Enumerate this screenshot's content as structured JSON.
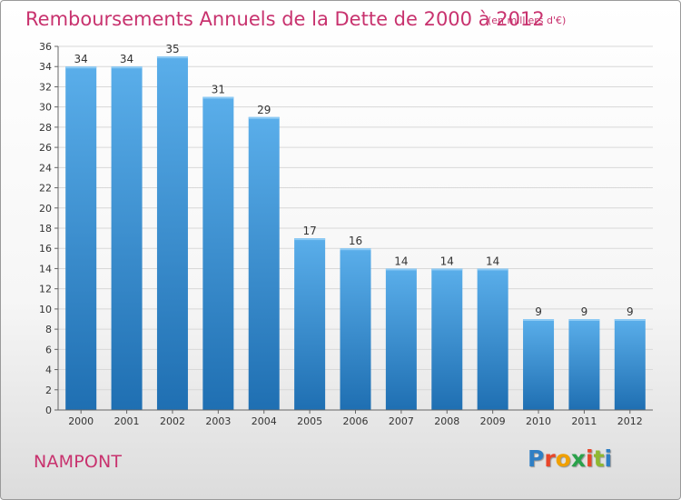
{
  "header": {
    "title": "Remboursements Annuels de la Dette de 2000 à 2012",
    "subtitle": "(en milliers d'€)"
  },
  "footer": {
    "commune": "NAMPONT",
    "logo_text": "Proxiti",
    "logo_colors": [
      "#2f7fc4",
      "#e8462a",
      "#f0a000",
      "#2aa14a",
      "#e8462a",
      "#8fb830",
      "#2f7fc4"
    ]
  },
  "colors": {
    "accent": "#c8326e",
    "bar_top": "#5aaeea",
    "bar_bottom": "#1f6fb2"
  },
  "chart_data": {
    "type": "bar",
    "title": "Remboursements Annuels de la Dette de 2000 à 2012",
    "subtitle": "(en milliers d'€)",
    "categories": [
      "2000",
      "2001",
      "2002",
      "2003",
      "2004",
      "2005",
      "2006",
      "2007",
      "2008",
      "2009",
      "2010",
      "2011",
      "2012"
    ],
    "values": [
      34,
      34,
      35,
      31,
      29,
      17,
      16,
      14,
      14,
      14,
      9,
      9,
      9
    ],
    "data_labels": [
      "34",
      "34",
      "35",
      "31",
      "29",
      "17",
      "16",
      "14",
      "14",
      "14",
      "9",
      "9",
      "9"
    ],
    "ylim": [
      0,
      36
    ],
    "yticks": [
      0,
      2,
      4,
      6,
      8,
      10,
      12,
      14,
      16,
      18,
      20,
      22,
      24,
      26,
      28,
      30,
      32,
      34,
      36
    ],
    "ytick_labels": [
      "0",
      "2",
      "4",
      "6",
      "8",
      "10",
      "12",
      "14",
      "16",
      "18",
      "20",
      "22",
      "24",
      "26",
      "28",
      "30",
      "32",
      "34",
      "36"
    ],
    "xlabel": "",
    "ylabel": "",
    "grid": true
  }
}
